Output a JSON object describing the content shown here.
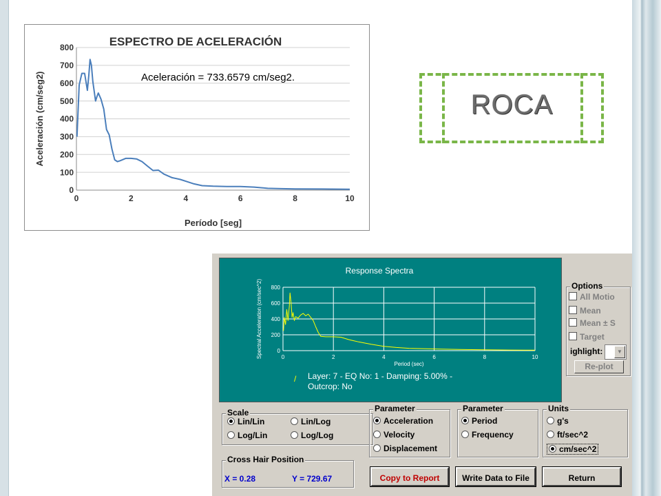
{
  "roca_label": "ROCA",
  "aceleracion_note": "Aceleración = 733.6579 cm/seg2.",
  "chart_data": [
    {
      "type": "line",
      "title": "ESPECTRO DE ACELERACIÓN",
      "xlabel": "Período [seg]",
      "ylabel": "Aceleración (cm/seg2)",
      "xlim": [
        0,
        10
      ],
      "ylim": [
        0,
        800
      ],
      "xticks": [
        "0",
        "2",
        "4",
        "6",
        "8",
        "10"
      ],
      "yticks": [
        "0",
        "100",
        "200",
        "300",
        "400",
        "500",
        "600",
        "700",
        "800"
      ],
      "grid": "horizontal",
      "color": "#4a7ebb",
      "x": [
        0.02,
        0.1,
        0.2,
        0.3,
        0.4,
        0.45,
        0.5,
        0.55,
        0.6,
        0.7,
        0.75,
        0.8,
        0.9,
        1.0,
        1.1,
        1.2,
        1.3,
        1.4,
        1.5,
        1.6,
        1.8,
        2.0,
        2.2,
        2.4,
        2.6,
        2.8,
        3.0,
        3.2,
        3.5,
        3.8,
        4.0,
        4.3,
        4.6,
        5.0,
        5.5,
        6.0,
        6.5,
        7.0,
        7.5,
        8.0,
        9.0,
        10.0
      ],
      "y": [
        300,
        590,
        655,
        655,
        560,
        640,
        733,
        700,
        610,
        500,
        525,
        545,
        510,
        455,
        340,
        310,
        230,
        170,
        160,
        165,
        178,
        178,
        175,
        160,
        135,
        110,
        112,
        90,
        70,
        60,
        50,
        35,
        25,
        22,
        20,
        20,
        17,
        10,
        8,
        7,
        6,
        5
      ]
    },
    {
      "type": "line",
      "title": "Response Spectra",
      "xlabel": "Period (sec)",
      "ylabel": "Spectral Acceleration (cm/sec^2)",
      "xlim": [
        0,
        10
      ],
      "ylim": [
        0,
        800
      ],
      "xticks": [
        "0",
        "2",
        "4",
        "6",
        "8",
        "10"
      ],
      "yticks": [
        "0",
        "200",
        "400",
        "600",
        "800"
      ],
      "grid": "both",
      "color": "#ffff00",
      "x": [
        0.02,
        0.05,
        0.1,
        0.15,
        0.2,
        0.25,
        0.28,
        0.32,
        0.36,
        0.4,
        0.45,
        0.5,
        0.6,
        0.7,
        0.8,
        0.9,
        1.0,
        1.1,
        1.2,
        1.3,
        1.4,
        1.5,
        1.7,
        2.0,
        2.3,
        2.6,
        3.0,
        3.5,
        4.0,
        4.5,
        5.0,
        6.0,
        7.0,
        8.0,
        9.0,
        10.0
      ],
      "y": [
        250,
        420,
        330,
        520,
        380,
        560,
        729,
        610,
        420,
        480,
        380,
        430,
        410,
        450,
        470,
        440,
        460,
        420,
        380,
        300,
        230,
        180,
        175,
        175,
        170,
        140,
        110,
        80,
        55,
        40,
        30,
        22,
        15,
        10,
        8,
        6
      ]
    }
  ],
  "plot": {
    "legend_line": "Layer:   7 - EQ No:  1 - Damping: 5.00% -",
    "legend_line2": "Outcrop: No"
  },
  "options": {
    "title": "Options",
    "items": [
      "All Motio",
      "Mean",
      "Mean ± S",
      "Target"
    ],
    "highlight_label": "ighlight:",
    "replot": "Re-plot"
  },
  "scale": {
    "title": "Scale",
    "options": [
      "Lin/Lin",
      "Lin/Log",
      "Log/Lin",
      "Log/Log"
    ],
    "selected": "Lin/Lin"
  },
  "parameter_y": {
    "title": "Parameter",
    "options": [
      "Acceleration",
      "Velocity",
      "Displacement"
    ],
    "selected": "Acceleration"
  },
  "parameter_x": {
    "title": "Parameter",
    "options": [
      "Period",
      "Frequency"
    ],
    "selected": "Period"
  },
  "units": {
    "title": "Units",
    "options": [
      "g's",
      "ft/sec^2",
      "cm/sec^2"
    ],
    "selected": "cm/sec^2"
  },
  "crosshair": {
    "title": "Cross Hair Position",
    "x": "X = 0.28",
    "y": "Y = 729.67"
  },
  "buttons": {
    "copy": "Copy to Report",
    "write": "Write Data to File",
    "return": "Return"
  }
}
